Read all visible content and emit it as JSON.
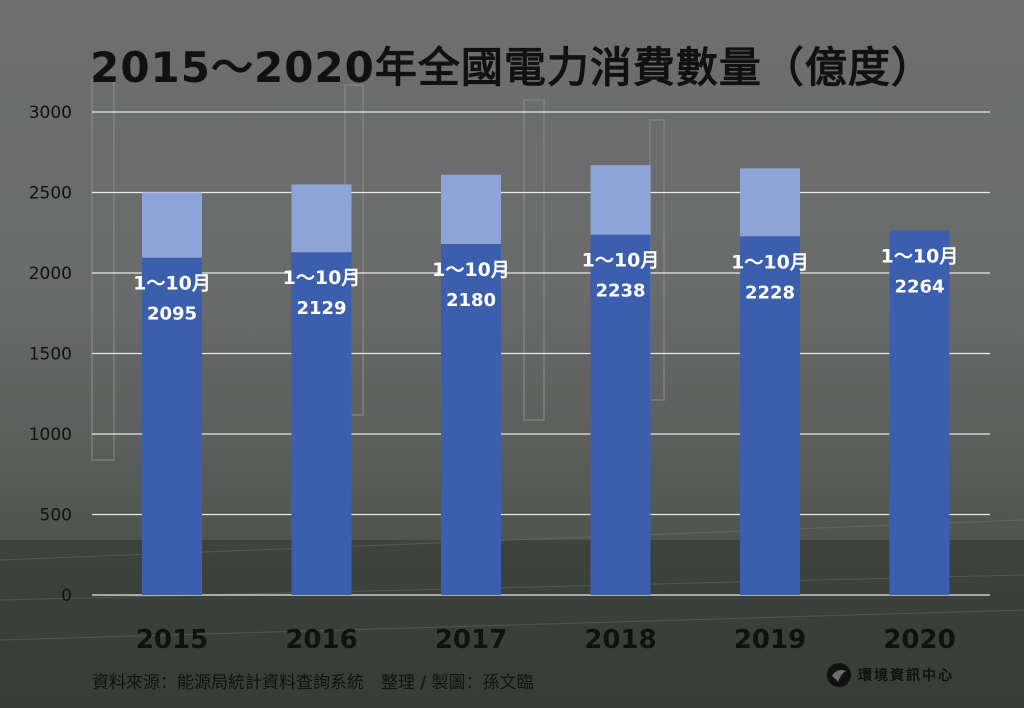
{
  "title": "2015～2020年全國電力消費數量（億度）",
  "source": "資料來源：能源局統計資料查詢系統　整理 / 製圖：孫文臨",
  "brand": "環境資訊中心",
  "chart_data": {
    "type": "bar",
    "title": "2015～2020年全國電力消費數量（億度）",
    "categories": [
      "2015",
      "2016",
      "2017",
      "2018",
      "2019",
      "2020"
    ],
    "series": [
      {
        "name": "1～10月",
        "values": [
          2095,
          2129,
          2180,
          2238,
          2228,
          2264
        ]
      },
      {
        "name": "",
        "values": [
          2500,
          2550,
          2610,
          2670,
          2650,
          null
        ]
      }
    ],
    "bar_label": "1～10月",
    "ylim": [
      0,
      3000
    ],
    "yticks": [
      0,
      500,
      1000,
      1500,
      2000,
      2500,
      3000
    ],
    "grid": true,
    "colors": {
      "partial": "#3b5fad",
      "total": "#8ea3d8",
      "grid": "#e8e8e8",
      "label": "#ffffff"
    }
  }
}
